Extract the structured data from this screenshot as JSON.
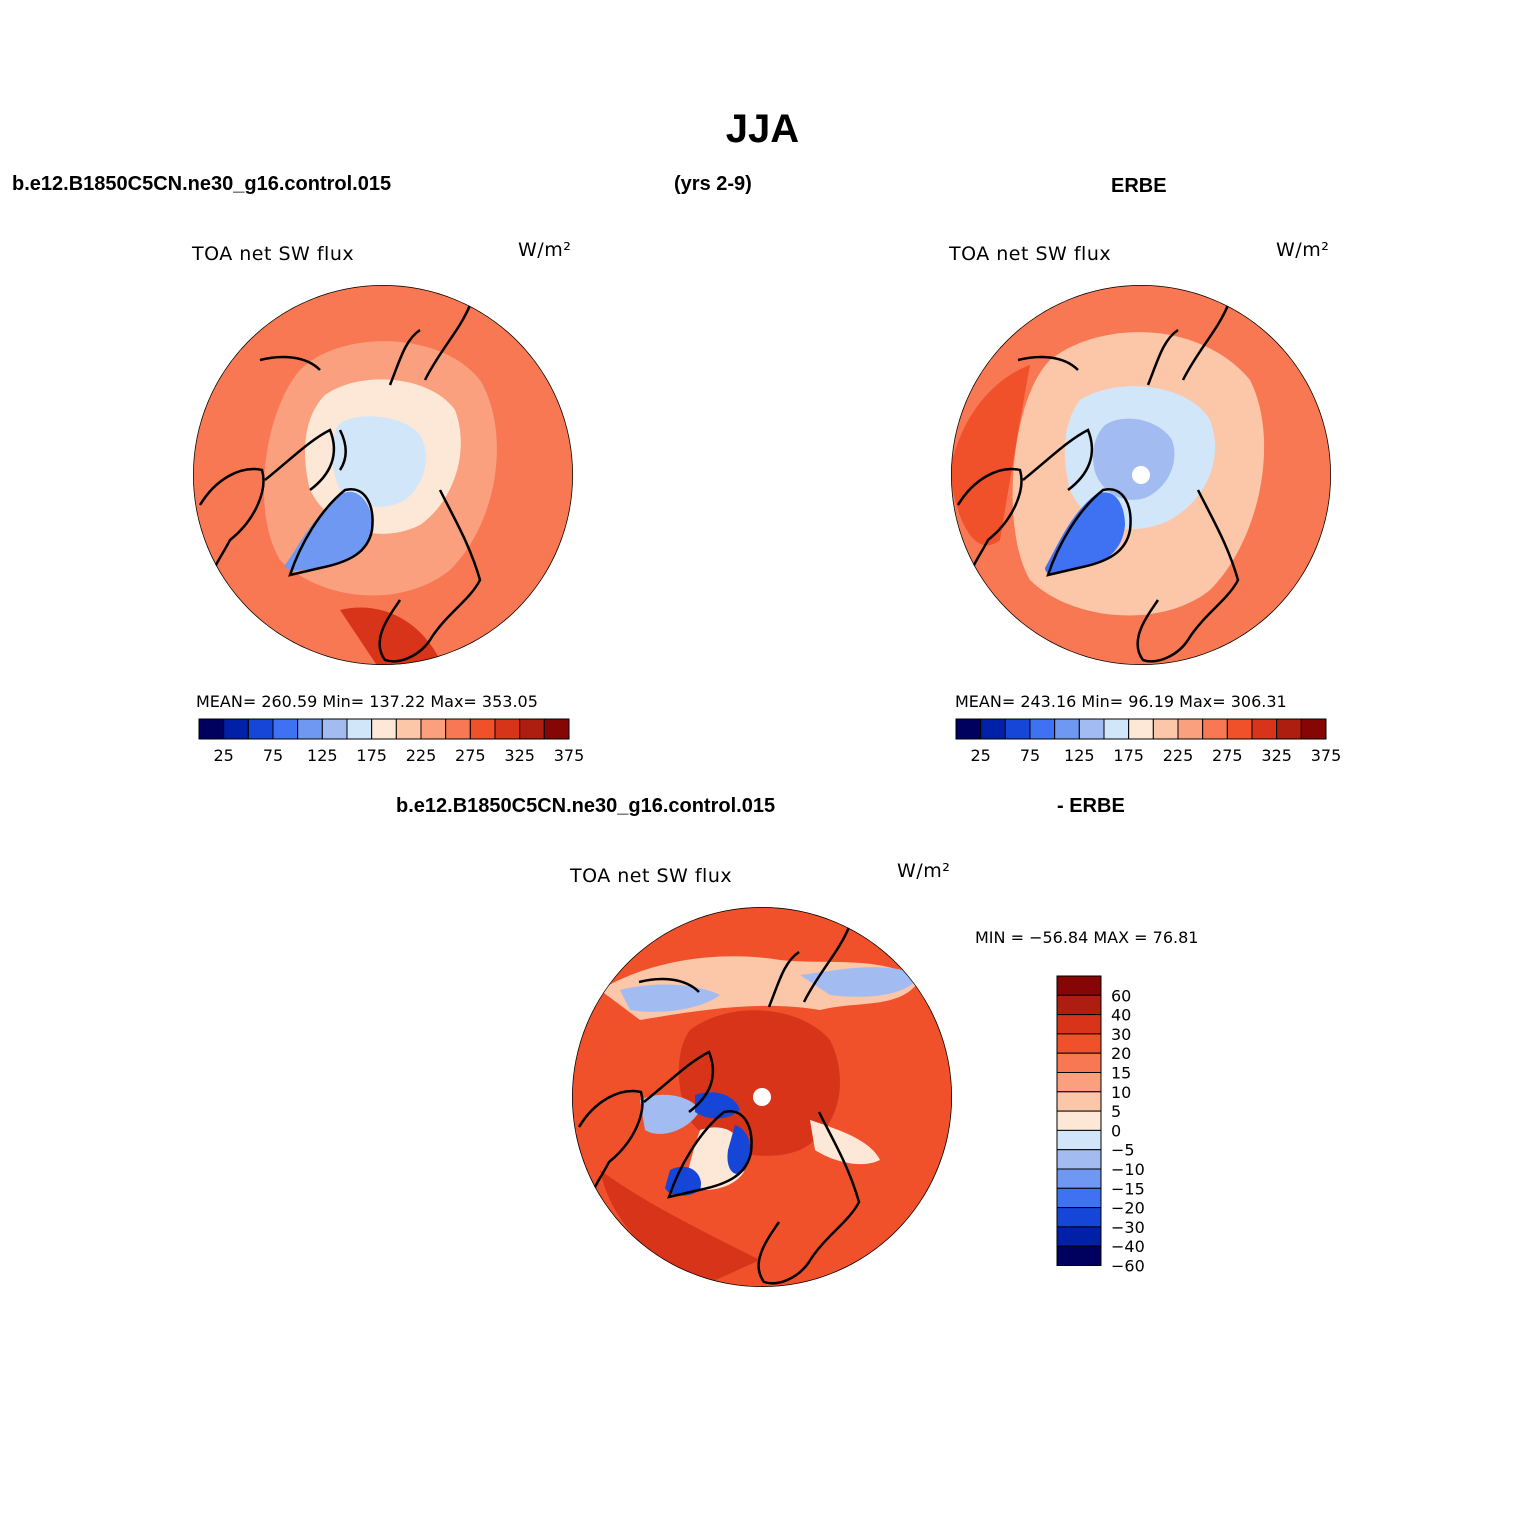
{
  "figure_title": "JJA",
  "header": {
    "case": "b.e12.B1850C5CN.ne30_g16.control.015",
    "years": "(yrs 2-9)",
    "obs": "ERBE",
    "diff_case": "b.e12.B1850C5CN.ne30_g16.control.015",
    "diff_obs": "- ERBE"
  },
  "panels": [
    {
      "id": "model",
      "variable": "TOA net SW flux",
      "units": "W/m²",
      "stats": "MEAN= 260.59   Min= 137.22   Max= 353.05",
      "pole_hole": false
    },
    {
      "id": "obs",
      "variable": "TOA net SW flux",
      "units": "W/m²",
      "stats": "MEAN= 243.16   Min=  96.19   Max= 306.31",
      "pole_hole": true
    },
    {
      "id": "diff",
      "variable": "TOA net SW flux",
      "units": "W/m²",
      "stats": "MIN = −56.84 MAX =  76.81",
      "pole_hole": true
    }
  ],
  "abs_colorbar": {
    "colors": [
      "#00005e",
      "#0020a8",
      "#1646d8",
      "#3e72f2",
      "#6e98f2",
      "#a2bcf2",
      "#d2e6fa",
      "#fde8d8",
      "#fcc6a8",
      "#faa07e",
      "#f77852",
      "#f0502a",
      "#d8341a",
      "#ad1d10",
      "#860606"
    ],
    "tick_labels": [
      "25",
      "75",
      "125",
      "175",
      "225",
      "275",
      "325",
      "375"
    ]
  },
  "diff_colorbar": {
    "colors_top_to_bottom": [
      "#860606",
      "#ad1d10",
      "#d8341a",
      "#f0502a",
      "#f77852",
      "#faa07e",
      "#fcc6a8",
      "#fde8d8",
      "#d2e6fa",
      "#a2bcf2",
      "#6e98f2",
      "#3e72f2",
      "#1646d8",
      "#0020a8",
      "#00005e"
    ],
    "tick_labels": [
      "60",
      "40",
      "30",
      "20",
      "15",
      "10",
      "5",
      "0",
      "−5",
      "−10",
      "−15",
      "−20",
      "−30",
      "−40",
      "−60"
    ]
  },
  "map_colors": {
    "model": {
      "outer": "#f77852",
      "ring": "#faa07e",
      "cap": "#fde8d8",
      "core": "#d2e6fa",
      "greenland": "#6e98f2",
      "hot": "#d8341a"
    },
    "obs": {
      "outer": "#f77852",
      "ring": "#fcc6a8",
      "cap": "#d2e6fa",
      "core": "#a2bcf2",
      "greenland": "#3e72f2",
      "hot": "#f0502a"
    },
    "diff": {
      "outer": "#f0502a",
      "warm": "#d8341a",
      "light": "#fcc6a8",
      "neutral": "#fde8d8",
      "cool": "#a2bcf2",
      "cold": "#1646d8"
    }
  }
}
